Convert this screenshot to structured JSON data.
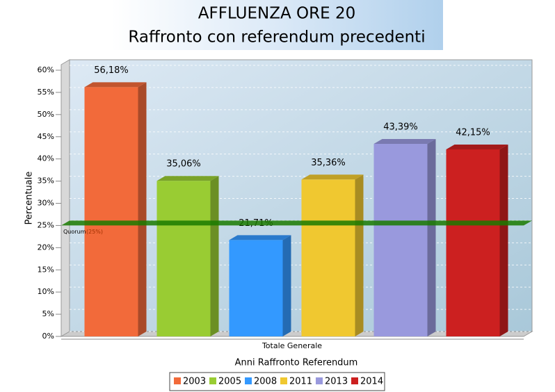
{
  "chart_data": {
    "type": "bar",
    "title": [
      "AFFLUENZA ORE 20",
      "Raffronto con referendum precedenti"
    ],
    "x_label": "Anni Raffronto Referendum",
    "y_label": "Percentuale",
    "categories": [
      "Totale Generale"
    ],
    "series": [
      {
        "name": "2003",
        "color": "#f26a3a",
        "values": [
          56.18
        ],
        "value_labels": [
          "56,18%"
        ]
      },
      {
        "name": "2005",
        "color": "#99cc33",
        "values": [
          35.06
        ],
        "value_labels": [
          "35,06%"
        ]
      },
      {
        "name": "2008",
        "color": "#3399ff",
        "values": [
          21.71
        ],
        "value_labels": [
          "21,71%"
        ]
      },
      {
        "name": "2011",
        "color": "#f0c830",
        "values": [
          35.36
        ],
        "value_labels": [
          "35,36%"
        ]
      },
      {
        "name": "2013",
        "color": "#9999dd",
        "values": [
          43.39
        ],
        "value_labels": [
          "43,39%"
        ]
      },
      {
        "name": "2014",
        "color": "#cc2020",
        "values": [
          42.15
        ],
        "value_labels": [
          "42,15%"
        ]
      }
    ],
    "quorum": {
      "value": 25,
      "label": "Quorum",
      "value_label": "(25%)",
      "color": "#1a7a00"
    },
    "ylim": [
      0,
      60
    ],
    "yticks": [
      {
        "value": 0,
        "label": "0%"
      },
      {
        "value": 5,
        "label": "5%"
      },
      {
        "value": 10,
        "label": "10%"
      },
      {
        "value": 15,
        "label": "15%"
      },
      {
        "value": 20,
        "label": "20%"
      },
      {
        "value": 25,
        "label": "25%"
      },
      {
        "value": 30,
        "label": "30%"
      },
      {
        "value": 35,
        "label": "35%"
      },
      {
        "value": 40,
        "label": "40%"
      },
      {
        "value": 45,
        "label": "45%"
      },
      {
        "value": 50,
        "label": "50%"
      },
      {
        "value": 55,
        "label": "55%"
      },
      {
        "value": 60,
        "label": "60%"
      }
    ],
    "grid": true
  }
}
